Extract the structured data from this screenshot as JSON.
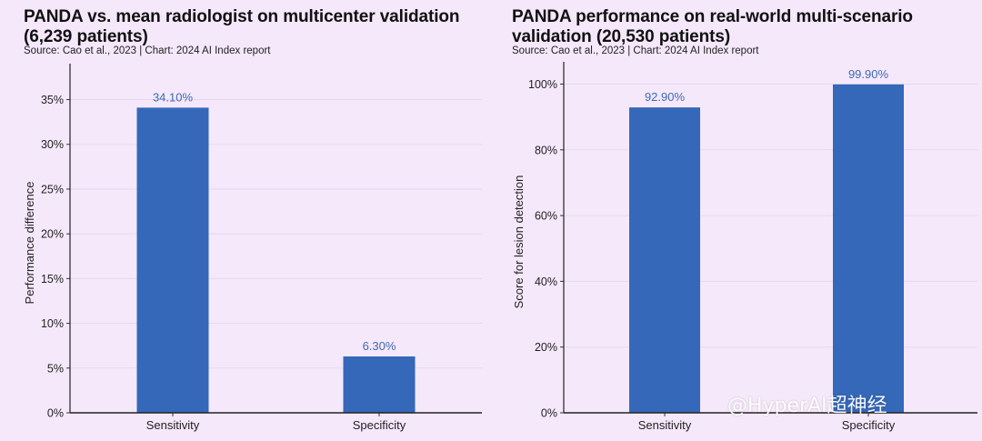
{
  "chart_data": [
    {
      "type": "bar",
      "title": "PANDA vs. mean radiologist on multicenter validation (6,239 patients)",
      "source": "Source: Cao et al., 2023 | Chart: 2024 AI Index report",
      "xlabel": "",
      "ylabel": "Performance difference",
      "categories": [
        "Sensitivity",
        "Specificity"
      ],
      "values": [
        34.1,
        6.3
      ],
      "data_labels": [
        "34.10%",
        "6.30%"
      ],
      "ylim": [
        0,
        38
      ],
      "yticks": [
        0,
        5,
        10,
        15,
        20,
        25,
        30,
        35
      ],
      "ytick_labels": [
        "0%",
        "5%",
        "10%",
        "15%",
        "20%",
        "25%",
        "30%",
        "35%"
      ],
      "grid": true,
      "bar_color": "#3568b8"
    },
    {
      "type": "bar",
      "title": "PANDA performance on real-world multi-scenario validation (20,530 patients)",
      "source": "Source: Cao et al., 2023 | Chart: 2024 AI Index report",
      "xlabel": "",
      "ylabel": "Score for lesion detection",
      "categories": [
        "Sensitivity",
        "Specificity"
      ],
      "values": [
        92.9,
        99.9
      ],
      "data_labels": [
        "92.90%",
        "99.90%"
      ],
      "ylim": [
        0,
        104
      ],
      "yticks": [
        0,
        20,
        40,
        60,
        80,
        100
      ],
      "ytick_labels": [
        "0%",
        "20%",
        "40%",
        "60%",
        "80%",
        "100%"
      ],
      "grid": true,
      "bar_color": "#3568b8"
    }
  ],
  "colors": {
    "background": "#f5e8fb",
    "bar": "#3568b8",
    "data_label": "#3e6bb0",
    "grid": "#e6d7ee"
  },
  "watermark": "@HyperAI超神经"
}
